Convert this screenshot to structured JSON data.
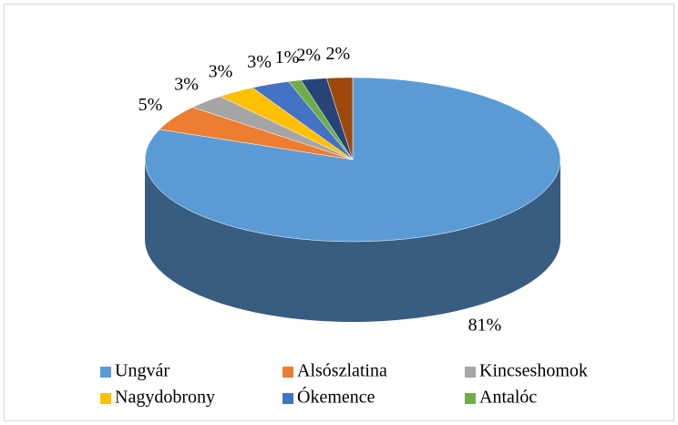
{
  "chart_data": {
    "type": "pie3d",
    "categories": [
      "Ungvár",
      "Alsószlatina",
      "Kincseshomok",
      "Nagydobrony",
      "Ókemence",
      "Antalóc",
      null,
      null
    ],
    "values": [
      81,
      5,
      3,
      3,
      3,
      1,
      2,
      2
    ],
    "value_labels": [
      "81%",
      "5%",
      "3%",
      "3%",
      "3%",
      "1%",
      "2%",
      "2%"
    ],
    "colors": [
      "#5b9bd5",
      "#ed7d31",
      "#a5a5a5",
      "#ffc000",
      "#4472c4",
      "#70ad47",
      "#264478",
      "#9e480e"
    ],
    "legend": "bottom"
  }
}
